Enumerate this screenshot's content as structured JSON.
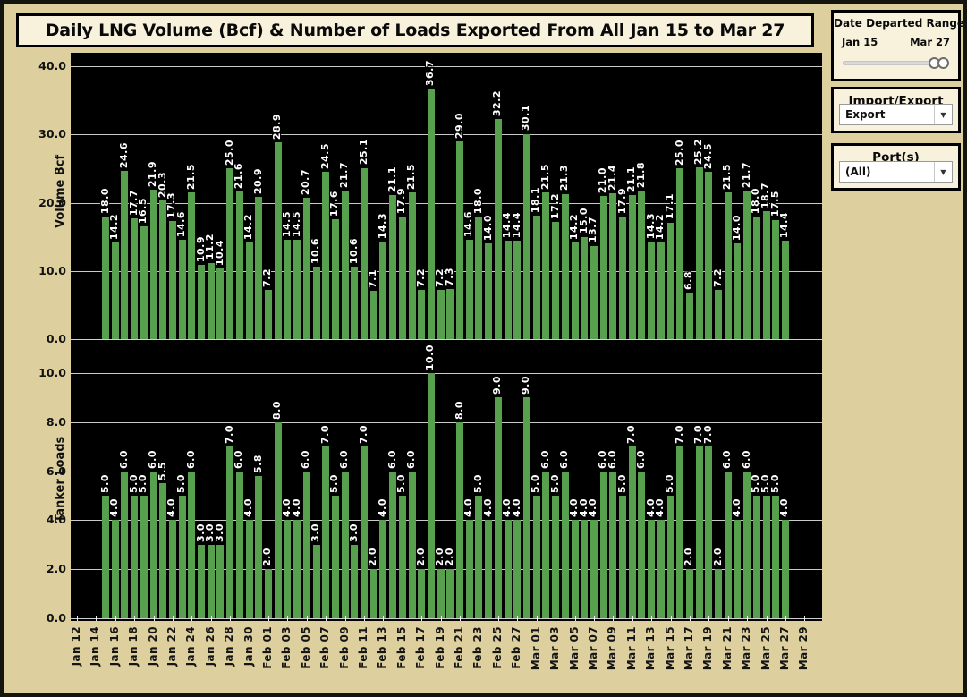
{
  "title": "Daily LNG Volume (Bcf) & Number of Loads Exported From All Jan 15 to Mar 27",
  "filters": {
    "date_range": {
      "title": "Date Departed Range",
      "start_label": "Jan 15",
      "end_label": "Mar 27"
    },
    "import_export": {
      "title": "Import/Export",
      "selected": "Export",
      "caret": "▼"
    },
    "ports": {
      "title": "Port(s)",
      "selected": "(All)",
      "caret": "▼"
    }
  },
  "colors": {
    "bar_green": "#57a14e",
    "plot_background": "#000000",
    "page_background": "#ddd09e",
    "panel_background": "#f8f2dc",
    "gridline": "#c9c9c9"
  },
  "x_axis": {
    "tick_labels": [
      "Jan 12",
      "Jan 14",
      "Jan 16",
      "Jan 18",
      "Jan 20",
      "Jan 22",
      "Jan 24",
      "Jan 26",
      "Jan 28",
      "Jan 30",
      "Feb 01",
      "Feb 03",
      "Feb 05",
      "Feb 07",
      "Feb 09",
      "Feb 11",
      "Feb 13",
      "Feb 15",
      "Feb 17",
      "Feb 19",
      "Feb 21",
      "Feb 23",
      "Feb 25",
      "Feb 27",
      "Mar 01",
      "Mar 03",
      "Mar 05",
      "Mar 07",
      "Mar 09",
      "Mar 11",
      "Mar 13",
      "Mar 15",
      "Mar 17",
      "Mar 19",
      "Mar 21",
      "Mar 23",
      "Mar 25",
      "Mar 27",
      "Mar 29"
    ]
  },
  "chart_data": [
    {
      "type": "bar",
      "title": "Daily LNG Volume (Bcf) Exported",
      "ylabel": "Volume Bcf",
      "ylim": [
        0,
        41.5
      ],
      "yticks": [
        0,
        10,
        20,
        30,
        40
      ],
      "ytick_labels": [
        "0.0",
        "10.0",
        "20.0",
        "30.0",
        "40.0"
      ],
      "grid": true,
      "legend": "none",
      "dates": [
        "Jan 15",
        "Jan 16",
        "Jan 17",
        "Jan 18",
        "Jan 19",
        "Jan 20",
        "Jan 21",
        "Jan 22",
        "Jan 23",
        "Jan 24",
        "Jan 25",
        "Jan 26",
        "Jan 27",
        "Jan 28",
        "Jan 29",
        "Jan 30",
        "Jan 31",
        "Feb 01",
        "Feb 02",
        "Feb 03",
        "Feb 04",
        "Feb 05",
        "Feb 06",
        "Feb 07",
        "Feb 08",
        "Feb 09",
        "Feb 10",
        "Feb 11",
        "Feb 12",
        "Feb 13",
        "Feb 14",
        "Feb 15",
        "Feb 16",
        "Feb 17",
        "Feb 18",
        "Feb 19",
        "Feb 20",
        "Feb 21",
        "Feb 22",
        "Feb 23",
        "Feb 24",
        "Feb 25",
        "Feb 26",
        "Feb 27",
        "Feb 28",
        "Mar 01",
        "Mar 02",
        "Mar 03",
        "Mar 04",
        "Mar 05",
        "Mar 06",
        "Mar 07",
        "Mar 08",
        "Mar 09",
        "Mar 10",
        "Mar 11",
        "Mar 12",
        "Mar 13",
        "Mar 14",
        "Mar 15",
        "Mar 16",
        "Mar 17",
        "Mar 18",
        "Mar 19",
        "Mar 20",
        "Mar 21",
        "Mar 22",
        "Mar 23",
        "Mar 24",
        "Mar 25",
        "Mar 26",
        "Mar 27"
      ],
      "values": [
        18.0,
        14.2,
        24.6,
        17.7,
        16.5,
        21.9,
        20.3,
        17.3,
        14.6,
        21.5,
        10.9,
        11.2,
        10.4,
        25.0,
        21.6,
        14.2,
        20.9,
        7.2,
        28.9,
        14.5,
        14.5,
        20.7,
        10.6,
        24.5,
        17.6,
        21.7,
        10.6,
        25.1,
        7.1,
        14.3,
        21.1,
        17.9,
        21.5,
        7.2,
        36.7,
        7.2,
        7.3,
        29.0,
        14.6,
        18.0,
        14.0,
        32.2,
        14.4,
        14.4,
        30.1,
        18.1,
        21.5,
        17.2,
        21.3,
        14.2,
        15.0,
        13.7,
        21.0,
        21.4,
        17.9,
        21.1,
        21.8,
        14.3,
        14.2,
        17.1,
        25.0,
        6.8,
        25.2,
        24.5,
        7.2,
        21.5,
        14.0,
        21.7,
        18.0,
        18.7,
        17.5,
        14.4
      ]
    },
    {
      "type": "bar",
      "title": "Daily Number of Tanker Loads Exported",
      "ylabel": "Tanker Loads",
      "ylim": [
        0,
        11
      ],
      "yticks": [
        0,
        2,
        4,
        6,
        8,
        10
      ],
      "ytick_labels": [
        "0.0",
        "2.0",
        "4.0",
        "6.0",
        "8.0",
        "10.0"
      ],
      "grid": true,
      "legend": "none",
      "dates": [
        "Jan 15",
        "Jan 16",
        "Jan 17",
        "Jan 18",
        "Jan 19",
        "Jan 20",
        "Jan 21",
        "Jan 22",
        "Jan 23",
        "Jan 24",
        "Jan 25",
        "Jan 26",
        "Jan 27",
        "Jan 28",
        "Jan 29",
        "Jan 30",
        "Jan 31",
        "Feb 01",
        "Feb 02",
        "Feb 03",
        "Feb 04",
        "Feb 05",
        "Feb 06",
        "Feb 07",
        "Feb 08",
        "Feb 09",
        "Feb 10",
        "Feb 11",
        "Feb 12",
        "Feb 13",
        "Feb 14",
        "Feb 15",
        "Feb 16",
        "Feb 17",
        "Feb 18",
        "Feb 19",
        "Feb 20",
        "Feb 21",
        "Feb 22",
        "Feb 23",
        "Feb 24",
        "Feb 25",
        "Feb 26",
        "Feb 27",
        "Feb 28",
        "Mar 01",
        "Mar 02",
        "Mar 03",
        "Mar 04",
        "Mar 05",
        "Mar 06",
        "Mar 07",
        "Mar 08",
        "Mar 09",
        "Mar 10",
        "Mar 11",
        "Mar 12",
        "Mar 13",
        "Mar 14",
        "Mar 15",
        "Mar 16",
        "Mar 17",
        "Mar 18",
        "Mar 19",
        "Mar 20",
        "Mar 21",
        "Mar 22",
        "Mar 23",
        "Mar 24",
        "Mar 25",
        "Mar 26",
        "Mar 27"
      ],
      "values": [
        5.0,
        4.0,
        6.0,
        5.0,
        5.0,
        6.0,
        5.5,
        4.0,
        5.0,
        6.0,
        3.0,
        3.0,
        3.0,
        7.0,
        6.0,
        4.0,
        5.8,
        2.0,
        8.0,
        4.0,
        4.0,
        6.0,
        3.0,
        7.0,
        5.0,
        6.0,
        3.0,
        7.0,
        2.0,
        4.0,
        6.0,
        5.0,
        6.0,
        2.0,
        10.0,
        2.0,
        2.0,
        8.0,
        4.0,
        5.0,
        4.0,
        9.0,
        4.0,
        4.0,
        9.0,
        5.0,
        6.0,
        5.0,
        6.0,
        4.0,
        4.0,
        4.0,
        6.0,
        6.0,
        5.0,
        7.0,
        6.0,
        4.0,
        4.0,
        5.0,
        7.0,
        2.0,
        7.0,
        7.0,
        2.0,
        6.0,
        4.0,
        6.0,
        5.0,
        5.0,
        5.0,
        4.0
      ]
    }
  ]
}
